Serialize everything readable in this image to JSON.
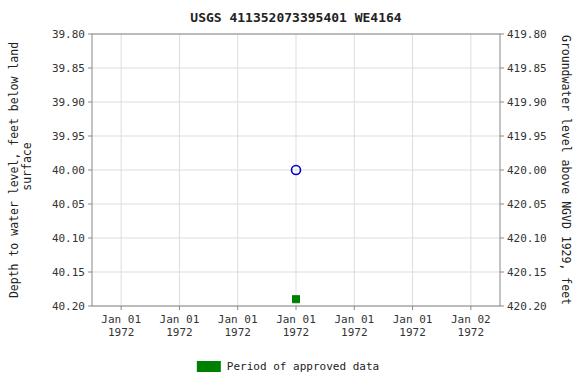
{
  "chart_data": {
    "type": "scatter",
    "title": "USGS 411352073395401 WE4164",
    "ylabel": "Depth to water level, feet below land\n surface",
    "y2label": "Groundwater level above NGVD 1929, feet",
    "categories": [
      "Jan 01\n1972",
      "Jan 01\n1972",
      "Jan 01\n1972",
      "Jan 01\n1972",
      "Jan 01\n1972",
      "Jan 01\n1972",
      "Jan 02\n1972"
    ],
    "series": [
      {
        "color": "#0000cc",
        "marker": "open-circle",
        "values": [
          null,
          null,
          null,
          40.0,
          null,
          null,
          null
        ]
      },
      {
        "name": "Period of approved data",
        "color": "#008000",
        "marker": "square",
        "values": [
          null,
          null,
          null,
          40.19,
          null,
          null,
          null
        ]
      }
    ],
    "ylim": [
      40.2,
      39.8
    ],
    "yticks": [
      {
        "value": 39.8,
        "label": "39.80"
      },
      {
        "value": 39.85,
        "label": "39.85"
      },
      {
        "value": 39.9,
        "label": "39.90"
      },
      {
        "value": 39.95,
        "label": "39.95"
      },
      {
        "value": 40.0,
        "label": "40.00"
      },
      {
        "value": 40.05,
        "label": "40.05"
      },
      {
        "value": 40.1,
        "label": "40.10"
      },
      {
        "value": 40.15,
        "label": "40.15"
      },
      {
        "value": 40.2,
        "label": "40.20"
      }
    ],
    "y2lim": [
      420.2,
      419.8
    ],
    "y2ticks": [
      {
        "value": 420.2,
        "label": "420.20"
      },
      {
        "value": 420.15,
        "label": "420.15"
      },
      {
        "value": 420.1,
        "label": "420.10"
      },
      {
        "value": 420.05,
        "label": "420.05"
      },
      {
        "value": 420.0,
        "label": "420.00"
      },
      {
        "value": 419.95,
        "label": "419.95"
      },
      {
        "value": 419.9,
        "label": "419.90"
      },
      {
        "value": 419.85,
        "label": "419.85"
      },
      {
        "value": 419.8,
        "label": "419.80"
      }
    ],
    "grid": true,
    "legend": "bottom"
  }
}
